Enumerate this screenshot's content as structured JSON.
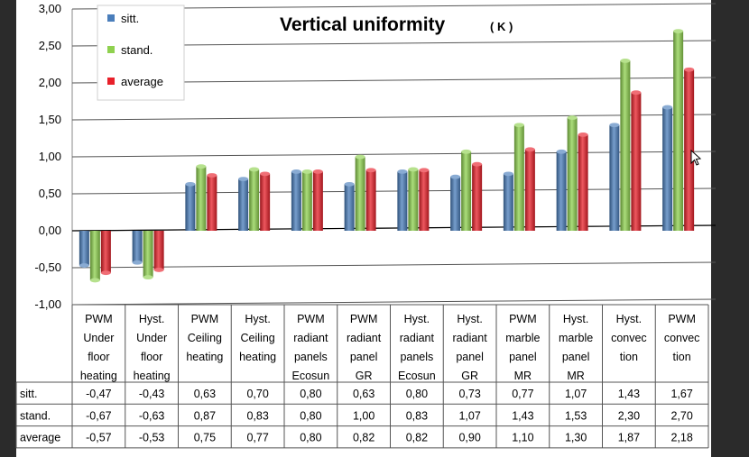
{
  "chart_data": {
    "type": "bar",
    "title": "Vertical uniformity",
    "unit": "( K )",
    "ylim": [
      -1.0,
      3.0
    ],
    "yticks": [
      "3,00",
      "2,50",
      "2,00",
      "1,50",
      "1,00",
      "0,50",
      "0,00",
      "-0,50",
      "-1,00"
    ],
    "categories": [
      [
        "PWM",
        "Under",
        "floor",
        "heating"
      ],
      [
        "Hyst.",
        "Under",
        "floor",
        "heating"
      ],
      [
        "PWM",
        "Ceiling",
        "heating"
      ],
      [
        "Hyst.",
        "Ceiling",
        "heating"
      ],
      [
        "PWM",
        "radiant",
        "panels",
        "Ecosun"
      ],
      [
        "PWM",
        "radiant",
        "panel",
        "GR"
      ],
      [
        "Hyst.",
        "radiant",
        "panels",
        "Ecosun"
      ],
      [
        "Hyst.",
        "radiant",
        "panel",
        "GR"
      ],
      [
        "PWM",
        "marble",
        "panel",
        "MR"
      ],
      [
        "Hyst.",
        "marble",
        "panel",
        "MR"
      ],
      [
        "Hyst.",
        "convec",
        "tion"
      ],
      [
        "PWM",
        "convec",
        "tion"
      ]
    ],
    "series": [
      {
        "name": "sitt.",
        "color": "#4a7ebb",
        "values": [
          -0.47,
          -0.43,
          0.63,
          0.7,
          0.8,
          0.63,
          0.8,
          0.73,
          0.77,
          1.07,
          1.43,
          1.67
        ],
        "labels": [
          "-0,47",
          "-0,43",
          "0,63",
          "0,70",
          "0,80",
          "0,63",
          "0,80",
          "0,73",
          "0,77",
          "1,07",
          "1,43",
          "1,67"
        ]
      },
      {
        "name": "stand.",
        "color": "#8fd14f",
        "values": [
          -0.67,
          -0.63,
          0.87,
          0.83,
          0.8,
          1.0,
          0.83,
          1.07,
          1.43,
          1.53,
          2.3,
          2.7
        ],
        "labels": [
          "-0,67",
          "-0,63",
          "0,87",
          "0,83",
          "0,80",
          "1,00",
          "0,83",
          "1,07",
          "1,43",
          "1,53",
          "2,30",
          "2,70"
        ]
      },
      {
        "name": "average",
        "color": "#e8202a",
        "values": [
          -0.57,
          -0.53,
          0.75,
          0.77,
          0.8,
          0.82,
          0.82,
          0.9,
          1.1,
          1.3,
          1.87,
          2.18
        ],
        "labels": [
          "-0,57",
          "-0,53",
          "0,75",
          "0,77",
          "0,80",
          "0,82",
          "0,82",
          "0,90",
          "1,10",
          "1,30",
          "1,87",
          "2,18"
        ]
      }
    ],
    "legend": "top-left"
  }
}
